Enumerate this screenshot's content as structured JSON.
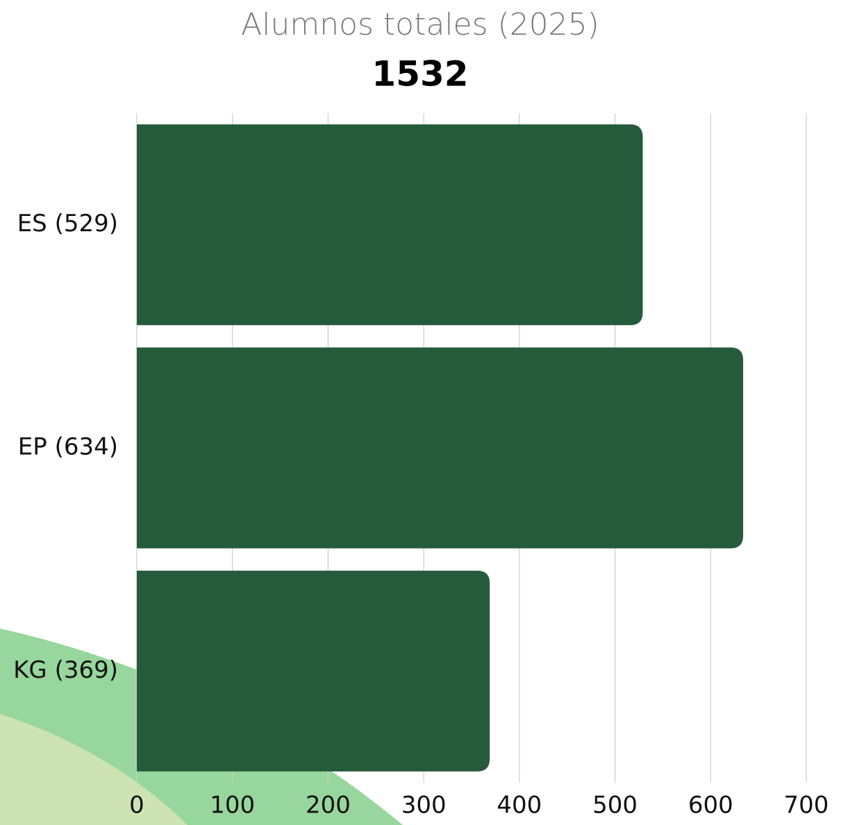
{
  "chart_data": {
    "type": "bar",
    "orientation": "horizontal",
    "title": "Alumnos totales (2025)",
    "subtitle": "1532",
    "categories": [
      "ES (529)",
      "EP (634)",
      "KG (369)"
    ],
    "values": [
      529,
      634,
      369
    ],
    "color": "#255b3a",
    "xlim": [
      0,
      700
    ],
    "xticks": [
      0,
      100,
      200,
      300,
      400,
      500,
      600,
      700
    ],
    "grid": true
  }
}
